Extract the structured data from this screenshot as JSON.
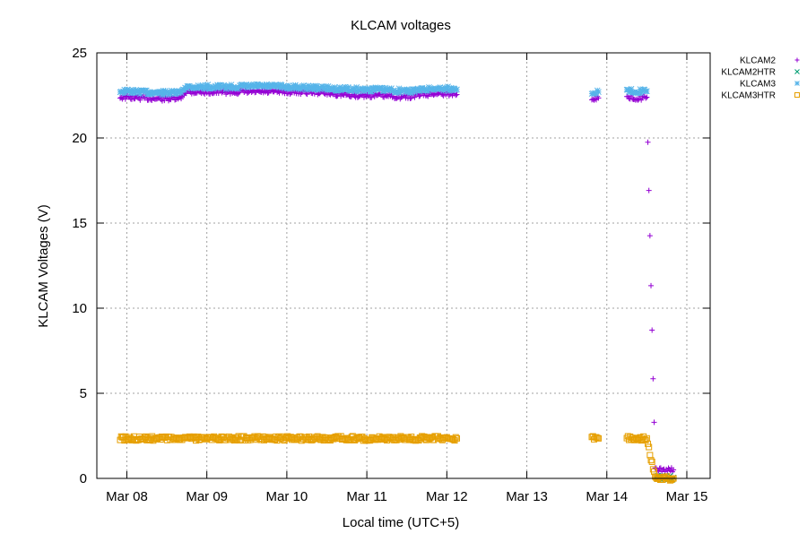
{
  "chart_data": {
    "type": "scatter",
    "title": "KLCAM voltages",
    "xlabel": "Local time (UTC+5)",
    "ylabel": "KLCAM Voltages (V)",
    "xlim": [
      "2024-03-07 15:00",
      "2024-03-15 07:00"
    ],
    "ylim": [
      0,
      25
    ],
    "x_ticks": [
      {
        "value": "2024-03-08 00:00",
        "label": "Mar 08"
      },
      {
        "value": "2024-03-09 00:00",
        "label": "Mar 09"
      },
      {
        "value": "2024-03-10 00:00",
        "label": "Mar 10"
      },
      {
        "value": "2024-03-11 00:00",
        "label": "Mar 11"
      },
      {
        "value": "2024-03-12 00:00",
        "label": "Mar 12"
      },
      {
        "value": "2024-03-13 00:00",
        "label": "Mar 13"
      },
      {
        "value": "2024-03-14 00:00",
        "label": "Mar 14"
      },
      {
        "value": "2024-03-15 00:00",
        "label": "Mar 15"
      }
    ],
    "y_ticks": [
      0,
      5,
      10,
      15,
      20,
      25
    ],
    "grid": true,
    "legend_position": "outside-top-right",
    "series": [
      {
        "name": "KLCAM2",
        "color": "#9400d3",
        "marker": "plus",
        "points": [
          [
            "2024-03-07 22:00",
            22.4
          ],
          [
            "2024-03-08 04:00",
            22.35
          ],
          [
            "2024-03-08 10:00",
            22.3
          ],
          [
            "2024-03-08 16:00",
            22.3
          ],
          [
            "2024-03-08 17:30",
            22.7
          ],
          [
            "2024-03-09 00:00",
            22.7
          ],
          [
            "2024-03-09 08:00",
            22.7
          ],
          [
            "2024-03-09 16:00",
            22.7
          ],
          [
            "2024-03-10 00:00",
            22.7
          ],
          [
            "2024-03-10 08:00",
            22.7
          ],
          [
            "2024-03-10 14:00",
            22.6
          ],
          [
            "2024-03-10 20:00",
            22.5
          ],
          [
            "2024-03-11 02:00",
            22.5
          ],
          [
            "2024-03-11 08:00",
            22.45
          ],
          [
            "2024-03-11 12:00",
            22.4
          ],
          [
            "2024-03-11 15:00",
            22.5
          ],
          [
            "2024-03-11 20:00",
            22.6
          ],
          [
            "2024-03-12 00:00",
            22.6
          ],
          [
            "2024-03-12 03:00",
            22.55
          ],
          [
            "2024-03-13 19:30",
            22.35
          ],
          [
            "2024-03-13 21:30",
            22.35
          ],
          [
            "2024-03-14 06:00",
            22.35
          ],
          [
            "2024-03-14 09:00",
            22.35
          ],
          [
            "2024-03-14 12:00",
            22.35
          ],
          [
            "2024-03-14 14:30",
            0.5
          ],
          [
            "2024-03-14 16:30",
            0.5
          ],
          [
            "2024-03-14 18:30",
            0.5
          ],
          [
            "2024-03-14 20:00",
            0.5
          ]
        ]
      },
      {
        "name": "KLCAM2HTR",
        "color": "#009e73",
        "marker": "cross",
        "points": [
          [
            "2024-03-14 15:00",
            0.05
          ],
          [
            "2024-03-14 17:30",
            0.05
          ],
          [
            "2024-03-14 20:00",
            0.05
          ]
        ]
      },
      {
        "name": "KLCAM3",
        "color": "#56b4e9",
        "marker": "star",
        "points": [
          [
            "2024-03-07 22:00",
            22.75
          ],
          [
            "2024-03-08 04:00",
            22.7
          ],
          [
            "2024-03-08 10:00",
            22.65
          ],
          [
            "2024-03-08 16:00",
            22.65
          ],
          [
            "2024-03-08 17:30",
            23.0
          ],
          [
            "2024-03-09 00:00",
            23.0
          ],
          [
            "2024-03-09 08:00",
            23.0
          ],
          [
            "2024-03-09 16:00",
            23.05
          ],
          [
            "2024-03-10 00:00",
            23.0
          ],
          [
            "2024-03-10 08:00",
            22.95
          ],
          [
            "2024-03-10 14:00",
            22.9
          ],
          [
            "2024-03-10 20:00",
            22.85
          ],
          [
            "2024-03-11 02:00",
            22.85
          ],
          [
            "2024-03-11 08:00",
            22.8
          ],
          [
            "2024-03-11 12:00",
            22.75
          ],
          [
            "2024-03-11 15:00",
            22.8
          ],
          [
            "2024-03-11 20:00",
            22.9
          ],
          [
            "2024-03-12 00:00",
            22.9
          ],
          [
            "2024-03-12 03:00",
            22.85
          ],
          [
            "2024-03-13 19:30",
            22.7
          ],
          [
            "2024-03-13 21:30",
            22.7
          ],
          [
            "2024-03-14 06:00",
            22.75
          ],
          [
            "2024-03-14 09:00",
            22.75
          ],
          [
            "2024-03-14 12:00",
            22.75
          ]
        ]
      },
      {
        "name": "KLCAM3HTR",
        "color": "#e69f00",
        "marker": "square",
        "points": [
          [
            "2024-03-07 22:00",
            2.35
          ],
          [
            "2024-03-08 06:00",
            2.35
          ],
          [
            "2024-03-08 14:00",
            2.35
          ],
          [
            "2024-03-08 22:00",
            2.35
          ],
          [
            "2024-03-09 06:00",
            2.35
          ],
          [
            "2024-03-09 14:00",
            2.35
          ],
          [
            "2024-03-09 22:00",
            2.35
          ],
          [
            "2024-03-10 06:00",
            2.35
          ],
          [
            "2024-03-10 14:00",
            2.35
          ],
          [
            "2024-03-10 22:00",
            2.35
          ],
          [
            "2024-03-11 06:00",
            2.35
          ],
          [
            "2024-03-11 14:00",
            2.35
          ],
          [
            "2024-03-11 22:00",
            2.35
          ],
          [
            "2024-03-12 03:00",
            2.35
          ],
          [
            "2024-03-13 19:30",
            2.35
          ],
          [
            "2024-03-13 21:30",
            2.35
          ],
          [
            "2024-03-14 06:00",
            2.35
          ],
          [
            "2024-03-14 09:00",
            2.35
          ],
          [
            "2024-03-14 12:00",
            2.35
          ],
          [
            "2024-03-14 14:30",
            0.0
          ],
          [
            "2024-03-14 17:00",
            0.0
          ],
          [
            "2024-03-14 20:00",
            0.0
          ]
        ]
      }
    ]
  }
}
